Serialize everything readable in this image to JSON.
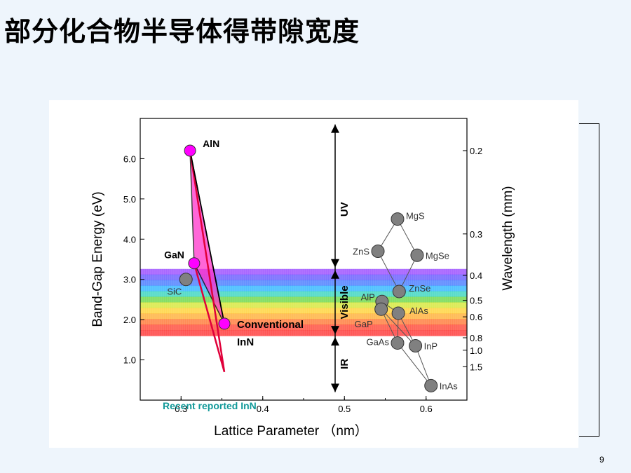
{
  "slide": {
    "title": "部分化合物半导体得带隙宽度",
    "page_number": "9"
  },
  "chart_data": {
    "type": "scatter",
    "xlabel": "Lattice Parameter （nm）",
    "ylabel": "Band-Gap Energy (eV)",
    "y2label": "Wavelength (mm)",
    "xlim": [
      0.25,
      0.65
    ],
    "ylim": [
      0.0,
      7.0
    ],
    "x_ticks": [
      {
        "value": 0.3,
        "label": "0.3"
      },
      {
        "value": 0.4,
        "label": "0.4"
      },
      {
        "value": 0.5,
        "label": "0.5"
      },
      {
        "value": 0.6,
        "label": "0.6"
      }
    ],
    "y_ticks": [
      {
        "value": 1.0,
        "label": "1.0"
      },
      {
        "value": 2.0,
        "label": "2.0"
      },
      {
        "value": 3.0,
        "label": "3.0"
      },
      {
        "value": 4.0,
        "label": "4.0"
      },
      {
        "value": 5.0,
        "label": "5.0"
      },
      {
        "value": 6.0,
        "label": "6.0"
      }
    ],
    "y2_ticks": [
      {
        "energy": 6.2,
        "label": "0.2"
      },
      {
        "energy": 4.13,
        "label": "0.3"
      },
      {
        "energy": 3.1,
        "label": "0.4"
      },
      {
        "energy": 2.48,
        "label": "0.5"
      },
      {
        "energy": 2.07,
        "label": "0.6"
      },
      {
        "energy": 1.55,
        "label": "0.8"
      },
      {
        "energy": 1.24,
        "label": "1.0"
      },
      {
        "energy": 0.83,
        "label": "1.5"
      }
    ],
    "regions": [
      {
        "label": "UV",
        "from": 3.26,
        "to": 6.85
      },
      {
        "label": "Visible",
        "from": 1.6,
        "to": 3.26
      },
      {
        "label": "IR",
        "from": 0.2,
        "to": 1.6
      }
    ],
    "spectrum_band": {
      "from": 1.6,
      "to": 3.26,
      "colors": [
        "#9b4dff",
        "#6a5cff",
        "#4a7cff",
        "#33b6ff",
        "#3bd6c0",
        "#6fd84a",
        "#d6e83a",
        "#ffd23a",
        "#ffb03a",
        "#ff7a3a",
        "#ff4a3a",
        "#ff3a3a"
      ]
    },
    "nitride_points": [
      {
        "label": "AlN",
        "x": 0.311,
        "y": 6.2
      },
      {
        "label": "GaN",
        "x": 0.316,
        "y": 3.4
      },
      {
        "label": "InN",
        "x": 0.353,
        "y": 1.9
      }
    ],
    "other_points": [
      {
        "label": "SiC",
        "x": 0.306,
        "y": 3.0
      },
      {
        "label": "MgS",
        "x": 0.565,
        "y": 4.5
      },
      {
        "label": "ZnS",
        "x": 0.541,
        "y": 3.7
      },
      {
        "label": "MgSe",
        "x": 0.589,
        "y": 3.6
      },
      {
        "label": "ZnSe",
        "x": 0.567,
        "y": 2.7
      },
      {
        "label": "AlP",
        "x": 0.546,
        "y": 2.45
      },
      {
        "label": "GaP",
        "x": 0.545,
        "y": 2.26
      },
      {
        "label": "AlAs",
        "x": 0.566,
        "y": 2.16
      },
      {
        "label": "GaAs",
        "x": 0.565,
        "y": 1.42
      },
      {
        "label": "InP",
        "x": 0.587,
        "y": 1.35
      },
      {
        "label": "InAs",
        "x": 0.606,
        "y": 0.36
      }
    ],
    "connections": [
      [
        "MgS",
        "ZnS"
      ],
      [
        "MgS",
        "MgSe"
      ],
      [
        "ZnS",
        "ZnSe"
      ],
      [
        "MgSe",
        "ZnSe"
      ],
      [
        "AlP",
        "GaP"
      ],
      [
        "AlP",
        "AlAs"
      ],
      [
        "GaP",
        "GaAs"
      ],
      [
        "GaP",
        "InP"
      ],
      [
        "AlAs",
        "GaAs"
      ],
      [
        "AlAs",
        "InP"
      ],
      [
        "GaAs",
        "InAs"
      ],
      [
        "InP",
        "InAs"
      ]
    ],
    "recent_inn": {
      "label": "Recent reported InN",
      "x": 0.353,
      "y": 0.7
    },
    "labels": {
      "conventional": "Conventional",
      "inn": "InN",
      "recent": "Recent reported InN"
    },
    "colors": {
      "nitride_fill": "#ff00ff",
      "nitride_region": "#ff33cc",
      "recent_line": "#e0003a",
      "other_fill": "#808080",
      "recent_text": "#119999"
    }
  }
}
